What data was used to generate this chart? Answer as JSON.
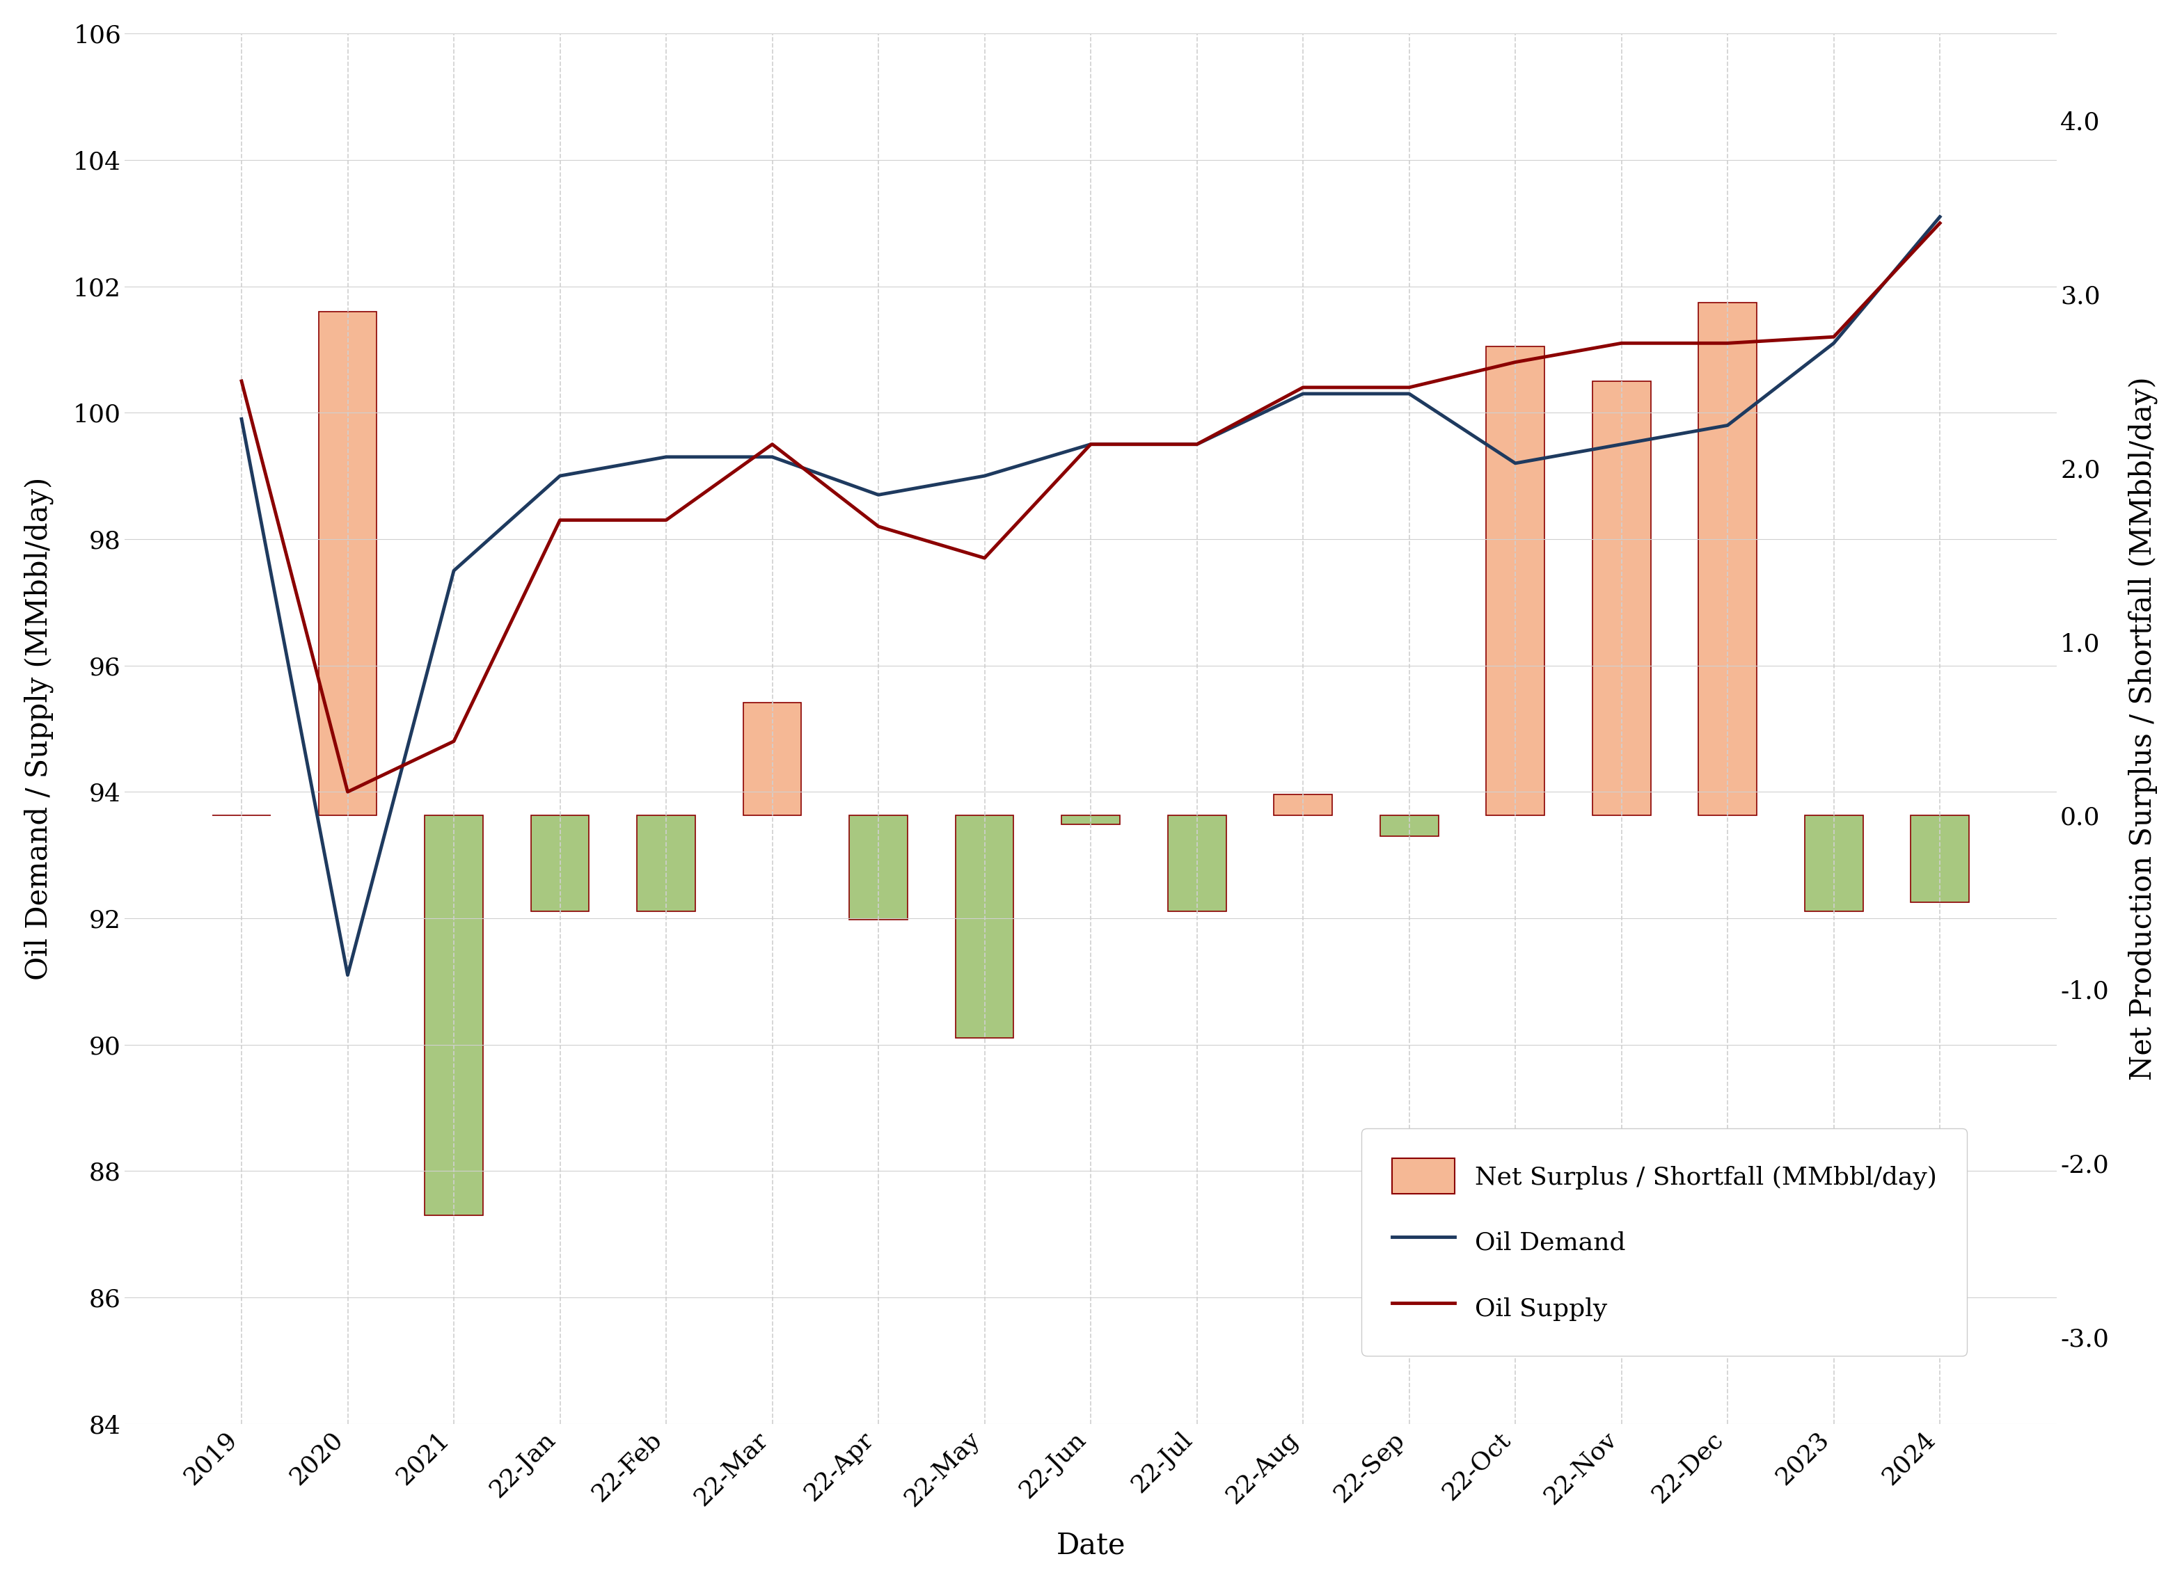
{
  "x_labels": [
    "2019",
    "2020",
    "2021",
    "22-Jan",
    "22-Feb",
    "22-Mar",
    "22-Apr",
    "22-May",
    "22-Jun",
    "22-Jul",
    "22-Aug",
    "22-Sep",
    "22-Oct",
    "22-Nov",
    "22-Dec",
    "2023",
    "2024"
  ],
  "oil_demand": [
    99.9,
    91.1,
    97.5,
    99.0,
    99.3,
    99.3,
    98.7,
    99.0,
    99.5,
    99.5,
    100.3,
    100.3,
    99.2,
    99.5,
    99.8,
    101.1,
    103.1
  ],
  "oil_supply": [
    100.5,
    94.0,
    94.8,
    98.3,
    98.3,
    99.5,
    98.2,
    97.7,
    99.5,
    99.5,
    100.4,
    100.4,
    100.8,
    101.1,
    101.1,
    101.2,
    103.0
  ],
  "net_surplus_shortfall": [
    0.0,
    2.9,
    -2.3,
    -0.55,
    -0.55,
    0.65,
    -0.6,
    -1.28,
    -0.05,
    -0.55,
    0.12,
    -0.12,
    2.7,
    2.5,
    2.95,
    -0.55,
    -0.5
  ],
  "bar_colors": [
    "#f4a460",
    "#f4a478",
    "#90c060",
    "#90c060",
    "#90c060",
    "#f4a478",
    "#90c060",
    "#90c060",
    "#f4a478",
    "#90c060",
    "#f4a478",
    "#90c060",
    "#f4a478",
    "#f4a478",
    "#f4a478",
    "#90c060",
    "#90c060"
  ],
  "demand_color": "#1e3a5f",
  "supply_color": "#8b0000",
  "bar_edge_color": "#8b0000",
  "bar_face_orange": "#f5b895",
  "bar_face_green": "#a8c880",
  "ylim_left": [
    84,
    106
  ],
  "ylim_right": [
    -3.5,
    4.5
  ],
  "ylabel_left": "Oil Demand / Supply (MMbbl/day)",
  "ylabel_right": "Net Production Surplus / Shortfall (MMbbl/day)",
  "xlabel": "Date",
  "background_color": "#ffffff",
  "plot_bg_color": "#ffffff",
  "grid_color": "#d0d0d0",
  "legend_labels": [
    "Net Surplus / Shortfall (MMbbl/day)",
    "Oil Demand",
    "Oil Supply"
  ],
  "legend_bar_color": "#f5b895",
  "legend_demand_color": "#1e3a5f",
  "legend_supply_color": "#8b0000",
  "axis_fontsize": 30,
  "tick_fontsize": 26,
  "legend_fontsize": 26,
  "bar_width": 0.55,
  "line_width": 3.5,
  "right_yticks": [
    -3.0,
    -2.0,
    -1.0,
    0.0,
    1.0,
    2.0,
    3.0,
    4.0
  ],
  "left_yticks": [
    84,
    86,
    88,
    90,
    92,
    94,
    96,
    98,
    100,
    102,
    104,
    106
  ]
}
